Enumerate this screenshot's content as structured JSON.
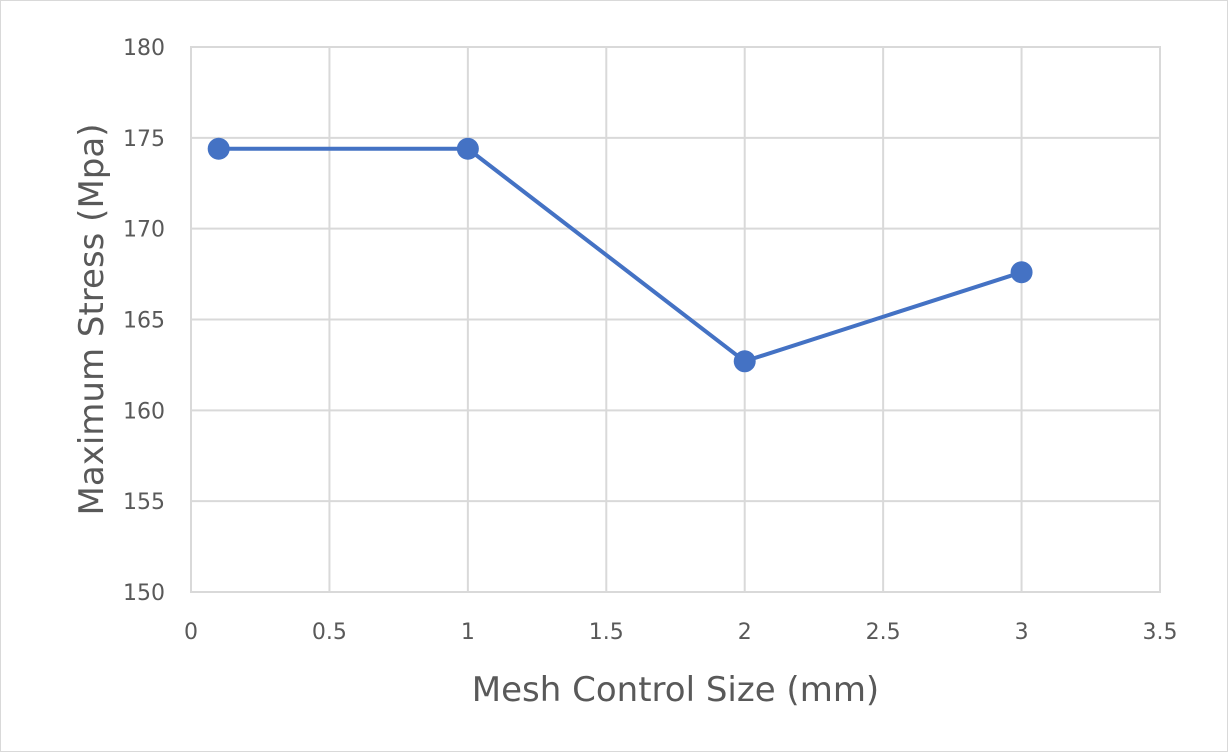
{
  "chart_data": {
    "type": "scatter",
    "mode": "lines+markers",
    "title": "",
    "xlabel": "Mesh Control Size (mm)",
    "ylabel": "Maximum Stress (Mpa)",
    "xlim": [
      0,
      3.5
    ],
    "ylim": [
      150,
      180
    ],
    "x_ticks": [
      0,
      0.5,
      1,
      1.5,
      2,
      2.5,
      3,
      3.5
    ],
    "x_tick_labels": [
      "0",
      "0.5",
      "1",
      "1.5",
      "2",
      "2.5",
      "3",
      "3.5"
    ],
    "y_ticks": [
      150,
      155,
      160,
      165,
      170,
      175,
      180
    ],
    "y_tick_labels": [
      "150",
      "155",
      "160",
      "165",
      "170",
      "175",
      "180"
    ],
    "grid": true,
    "legend": "none",
    "series": [
      {
        "x": [
          0.1,
          1,
          2,
          3
        ],
        "y": [
          174.4,
          174.4,
          162.7,
          167.6
        ],
        "color": "#4472c4"
      }
    ]
  }
}
